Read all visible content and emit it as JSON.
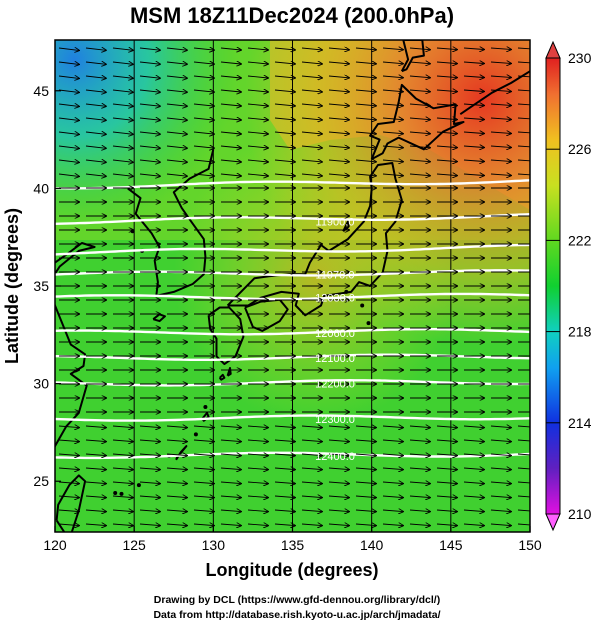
{
  "title": "MSM 18Z11Dec2024 (200.0hPa)",
  "x_axis": {
    "label": "Longitude (degrees)",
    "ticks": [
      "120",
      "125",
      "130",
      "135",
      "140",
      "145",
      "150"
    ],
    "range": [
      120,
      150
    ]
  },
  "y_axis": {
    "label": "Latitude  (degrees)",
    "ticks": [
      "25",
      "30",
      "35",
      "40",
      "45"
    ],
    "range": [
      22.4,
      47.6
    ]
  },
  "colorbar": {
    "ticks": [
      "210",
      "214",
      "218",
      "222",
      "226",
      "230"
    ],
    "range": [
      210,
      230
    ],
    "colors": [
      "#e010e0",
      "#5020c0",
      "#1030e0",
      "#10a0f0",
      "#10d0c0",
      "#10d030",
      "#60d820",
      "#c8e020",
      "#f0c020",
      "#f07030",
      "#e02020"
    ]
  },
  "contours": [
    {
      "lat": 40.1,
      "label": ""
    },
    {
      "lat": 38.3,
      "label": "11900.0"
    },
    {
      "lat": 36.7,
      "label": ""
    },
    {
      "lat": 35.6,
      "label": "11970.0"
    },
    {
      "lat": 34.4,
      "label": "12030.0"
    },
    {
      "lat": 32.6,
      "label": "12060.0"
    },
    {
      "lat": 31.3,
      "label": "12100.0"
    },
    {
      "lat": 30.0,
      "label": "12200.0"
    },
    {
      "lat": 28.2,
      "label": "12300.0"
    },
    {
      "lat": 26.3,
      "label": "12400.0"
    }
  ],
  "credits": {
    "line1": "Drawing by DCL (https://www.gfd-dennou.org/library/dcl/)",
    "line2": "Data from http://database.rish.kyoto-u.ac.jp/arch/jmadata/"
  }
}
